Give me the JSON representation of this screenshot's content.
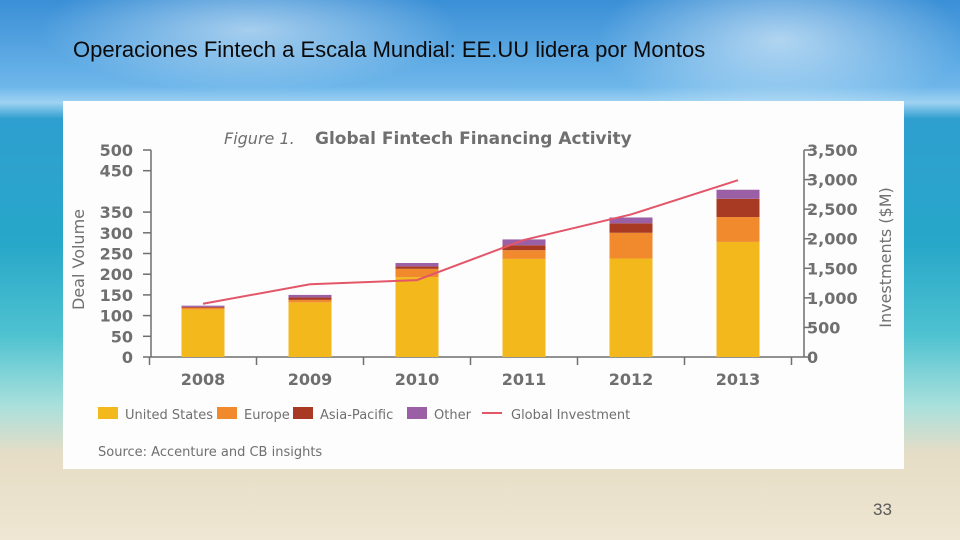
{
  "slide": {
    "title": "Operaciones  Fintech  a  Escala  Mundial: EE.UU lidera por Montos",
    "page_number": "33"
  },
  "colors": {
    "united_states": "#f2b81c",
    "europe": "#f08a2c",
    "asia_pacific": "#a83a24",
    "other": "#9b5fa6",
    "global_investment": "#e3566a",
    "axis_text": "#6f6f6f"
  },
  "chart_data": {
    "type": "bar",
    "stacked": true,
    "figure_label": "Figure 1.",
    "title": "Global Fintech Financing Activity",
    "source": "Source: Accenture and CB insights",
    "categories": [
      "2008",
      "2009",
      "2010",
      "2011",
      "2012",
      "2013"
    ],
    "ylabel": "Deal Volume",
    "ylim": [
      0,
      500
    ],
    "yticks": [
      "500",
      "450",
      "350",
      "300",
      "250",
      "200",
      "150",
      "100",
      "50",
      "0"
    ],
    "ytick_values": [
      500,
      450,
      350,
      300,
      250,
      200,
      150,
      100,
      50,
      0
    ],
    "y2label": "Investments ($M)",
    "y2lim": [
      0,
      3500
    ],
    "y2ticks": [
      "3,500",
      "3,000",
      "2,500",
      "2,000",
      "1,500",
      "1,000",
      "500",
      "0"
    ],
    "y2tick_values": [
      3500,
      3000,
      2500,
      2000,
      1500,
      1000,
      500,
      0
    ],
    "series": [
      {
        "name": "United States",
        "color_key": "united_states",
        "values": [
          115,
          132,
          193,
          237,
          238,
          278
        ]
      },
      {
        "name": "Europe",
        "color_key": "europe",
        "values": [
          4,
          6,
          20,
          21,
          62,
          60
        ]
      },
      {
        "name": "Asia-Pacific",
        "color_key": "asia_pacific",
        "values": [
          2,
          6,
          6,
          12,
          23,
          44
        ]
      },
      {
        "name": "Other",
        "color_key": "other",
        "values": [
          3,
          6,
          8,
          14,
          14,
          22
        ]
      }
    ],
    "line_series": {
      "name": "Global Investment",
      "color_key": "global_investment",
      "axis": "right",
      "values": [
        900,
        1230,
        1300,
        1980,
        2410,
        2990
      ]
    },
    "legend_position": "bottom",
    "grid": false
  }
}
